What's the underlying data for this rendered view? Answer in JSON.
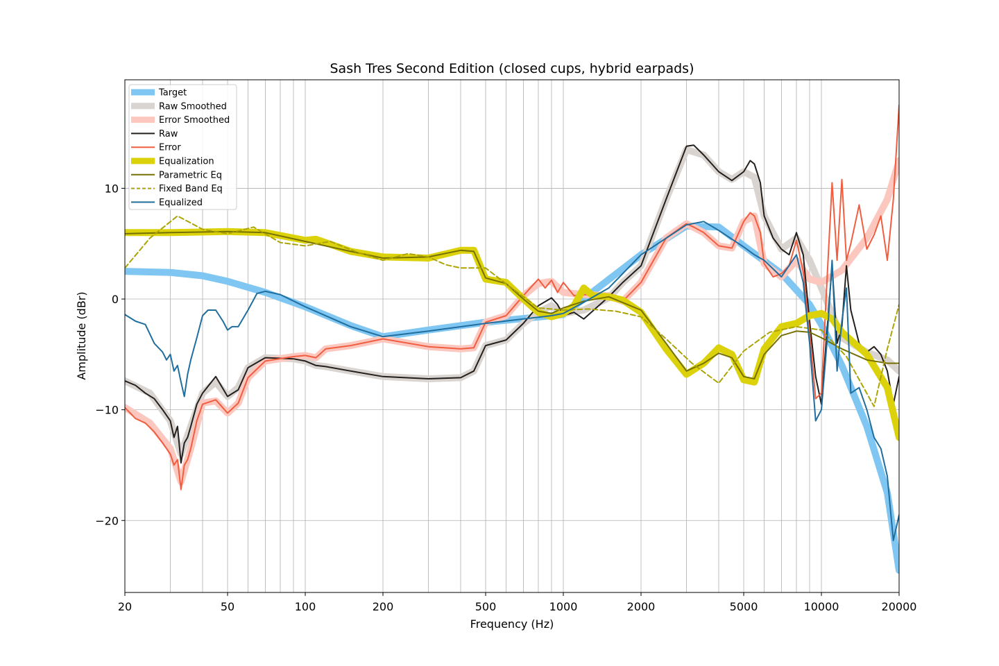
{
  "chart_data": {
    "type": "line",
    "title": "Sash Tres Second Edition (closed cups, hybrid earpads)",
    "xlabel": "Frequency (Hz)",
    "ylabel": "Amplitude (dBr)",
    "xscale": "log",
    "xlim": [
      20,
      20000
    ],
    "ylim": [
      -26.5,
      19.8
    ],
    "xticks": [
      20,
      50,
      100,
      200,
      500,
      1000,
      2000,
      5000,
      10000,
      20000
    ],
    "xtick_labels": [
      "20",
      "50",
      "100",
      "200",
      "500",
      "1000",
      "2000",
      "5000",
      "10000",
      "20000"
    ],
    "yticks": [
      -20,
      -10,
      0,
      10
    ],
    "ytick_labels": [
      "−20",
      "−10",
      "0",
      "10"
    ],
    "grid": true,
    "legend_position": "top-left",
    "series": [
      {
        "name": "Target",
        "key": "target",
        "color": "#7fc6f2",
        "style": "thick",
        "x": [
          20,
          30,
          40,
          50,
          70,
          100,
          150,
          200,
          300,
          500,
          1000,
          2000,
          3000,
          4000,
          5000,
          7000,
          9000,
          10000,
          12000,
          15000,
          18000,
          20000
        ],
        "y": [
          2.5,
          2.4,
          2.1,
          1.6,
          0.6,
          -0.7,
          -2.4,
          -3.4,
          -2.8,
          -2.1,
          -1.4,
          4.0,
          6.6,
          6.5,
          4.8,
          2.3,
          -0.5,
          -2.3,
          -6.0,
          -11.5,
          -17.5,
          -24.5
        ]
      },
      {
        "name": "Raw Smoothed",
        "key": "raw_smoothed",
        "color": "#d9d4d0",
        "style": "thick",
        "x": [
          20,
          25,
          30,
          33,
          36,
          40,
          45,
          50,
          55,
          60,
          70,
          90,
          100,
          110,
          120,
          150,
          200,
          300,
          400,
          450,
          500,
          600,
          700,
          800,
          900,
          1000,
          1200,
          1500,
          1700,
          2000,
          2500,
          3000,
          3500,
          4000,
          4500,
          5000,
          5500,
          6000,
          7000,
          8000,
          9000,
          10000,
          12000,
          15000,
          18000,
          20000
        ],
        "y": [
          -7.4,
          -8.5,
          -11,
          -14,
          -11.5,
          -8.5,
          -7.5,
          -8.8,
          -8,
          -6.2,
          -5.3,
          -5.4,
          -5.6,
          -6.0,
          -6.1,
          -6.5,
          -7.0,
          -7.2,
          -7.1,
          -6.5,
          -4.2,
          -3.7,
          -2.2,
          -1.2,
          -0.6,
          -1.3,
          -1.0,
          0.1,
          1.5,
          3.0,
          9.0,
          13.5,
          13.0,
          11.5,
          10.8,
          11.5,
          11.0,
          7.5,
          4.5,
          5.5,
          3.5,
          1.0,
          -3.5,
          -4.8,
          -5.5,
          -6.5
        ]
      },
      {
        "name": "Error Smoothed",
        "key": "error_smoothed",
        "color": "#fcc7bf",
        "style": "thick",
        "x": [
          20,
          25,
          30,
          33,
          36,
          40,
          45,
          50,
          55,
          60,
          70,
          90,
          100,
          110,
          120,
          150,
          200,
          300,
          400,
          450,
          500,
          600,
          700,
          800,
          900,
          1000,
          1200,
          1500,
          1700,
          2000,
          2500,
          3000,
          3500,
          4000,
          4500,
          5000,
          5500,
          6000,
          7000,
          8000,
          9000,
          10000,
          12000,
          15000,
          18000,
          20000
        ],
        "y": [
          -9.8,
          -11.2,
          -13.5,
          -16.5,
          -13.5,
          -9.4,
          -9.2,
          -10.3,
          -9.4,
          -7.1,
          -5.6,
          -5.2,
          -5.1,
          -5.3,
          -4.5,
          -4.2,
          -3.6,
          -4.3,
          -4.5,
          -4.4,
          -2.1,
          -1.5,
          0.3,
          1.4,
          1.6,
          0.6,
          0.4,
          0.3,
          -0.2,
          1.5,
          5.5,
          6.8,
          6.0,
          4.8,
          4.6,
          7.0,
          7.5,
          3.2,
          2.0,
          3.5,
          1.8,
          1.5,
          2.6,
          5.5,
          9.0,
          12.5
        ]
      },
      {
        "name": "Raw",
        "key": "raw",
        "color": "#231f1d",
        "style": "thin",
        "x": [
          20,
          22,
          24,
          26,
          28,
          30,
          31,
          32,
          33,
          34,
          35,
          36,
          38,
          40,
          45,
          50,
          55,
          60,
          70,
          90,
          100,
          110,
          120,
          150,
          200,
          300,
          400,
          450,
          500,
          600,
          700,
          800,
          900,
          950,
          1000,
          1100,
          1200,
          1500,
          1700,
          2000,
          2500,
          3000,
          3200,
          3500,
          4000,
          4500,
          5000,
          5300,
          5500,
          5800,
          6000,
          6500,
          7000,
          7500,
          8000,
          8500,
          9000,
          9500,
          10000,
          10500,
          11000,
          11500,
          12000,
          12500,
          13000,
          14000,
          15000,
          16000,
          17000,
          18000,
          19000,
          20000
        ],
        "y": [
          -7.4,
          -7.8,
          -8.5,
          -9.0,
          -10.0,
          -11.0,
          -12.5,
          -11.5,
          -14.8,
          -13.0,
          -12.5,
          -11.5,
          -9.5,
          -8.5,
          -7.0,
          -8.8,
          -8.2,
          -6.2,
          -5.3,
          -5.4,
          -5.6,
          -6.0,
          -6.1,
          -6.5,
          -7.0,
          -7.2,
          -7.1,
          -6.5,
          -4.2,
          -3.7,
          -2.2,
          -0.6,
          0.1,
          -0.5,
          -1.5,
          -1.2,
          -1.8,
          0.2,
          1.5,
          3.0,
          9.0,
          13.8,
          13.9,
          13.0,
          11.5,
          10.7,
          11.5,
          12.5,
          12.2,
          10.5,
          7.5,
          5.5,
          4.5,
          4.0,
          6.0,
          4.0,
          -2.0,
          -7.0,
          -9.5,
          -3.0,
          3.0,
          -4.0,
          -2.5,
          3.0,
          -1.0,
          -4.0,
          -4.8,
          -4.3,
          -5.0,
          -6.5,
          -9.5,
          -7.0
        ]
      },
      {
        "name": "Error",
        "key": "error",
        "color": "#f05d3f",
        "style": "thin",
        "x": [
          20,
          22,
          24,
          26,
          28,
          30,
          31,
          32,
          33,
          34,
          35,
          36,
          38,
          40,
          45,
          50,
          55,
          60,
          70,
          90,
          100,
          110,
          120,
          150,
          200,
          300,
          400,
          450,
          500,
          600,
          700,
          800,
          850,
          900,
          950,
          1000,
          1100,
          1200,
          1500,
          1700,
          2000,
          2500,
          3000,
          3200,
          3500,
          4000,
          4500,
          5000,
          5300,
          5500,
          5800,
          6000,
          6500,
          7000,
          7500,
          8000,
          8500,
          9000,
          9500,
          10000,
          10500,
          11000,
          11500,
          12000,
          12500,
          13000,
          14000,
          15000,
          16000,
          17000,
          18000,
          19000,
          20000
        ],
        "y": [
          -9.8,
          -10.8,
          -11.2,
          -12.0,
          -13.0,
          -14.0,
          -15.0,
          -14.5,
          -17.2,
          -15.0,
          -14.5,
          -13.5,
          -11.0,
          -9.5,
          -9.1,
          -10.3,
          -9.4,
          -7.1,
          -5.6,
          -5.2,
          -5.1,
          -5.3,
          -4.5,
          -4.2,
          -3.6,
          -4.3,
          -4.5,
          -4.4,
          -2.1,
          -1.5,
          0.3,
          1.8,
          1.0,
          1.7,
          0.6,
          1.5,
          0.3,
          0.4,
          0.3,
          -0.2,
          1.5,
          5.5,
          6.8,
          6.5,
          6.0,
          4.8,
          4.6,
          7.0,
          7.8,
          7.5,
          6.0,
          3.2,
          2.0,
          2.3,
          3.0,
          5.3,
          2.5,
          -3.0,
          -9.0,
          -8.5,
          1.5,
          10.5,
          3.5,
          10.8,
          3.5,
          5.0,
          8.5,
          4.5,
          5.8,
          7.5,
          3.5,
          9.0,
          17.5
        ]
      },
      {
        "name": "Equalization",
        "key": "equalization",
        "color": "#dcd20c",
        "style": "thick",
        "x": [
          20,
          30,
          50,
          70,
          100,
          110,
          150,
          200,
          300,
          400,
          450,
          500,
          600,
          700,
          800,
          900,
          1000,
          1100,
          1200,
          1300,
          1500,
          1700,
          2000,
          2500,
          3000,
          3500,
          4000,
          4500,
          5000,
          5500,
          6000,
          7000,
          8000,
          9000,
          10000,
          11000,
          12000,
          15000,
          18000,
          20000
        ],
        "y": [
          6.0,
          6.0,
          6.1,
          6.0,
          5.3,
          5.4,
          4.3,
          3.8,
          3.7,
          4.4,
          4.4,
          1.8,
          1.5,
          0.0,
          -1.2,
          -1.6,
          -1.3,
          -0.6,
          1.0,
          0.3,
          0.2,
          -0.1,
          -1.2,
          -4.5,
          -6.8,
          -5.8,
          -4.4,
          -5.0,
          -7.3,
          -7.5,
          -4.5,
          -2.5,
          -2.2,
          -1.5,
          -1.3,
          -1.8,
          -3.0,
          -5.0,
          -8.0,
          -12.5
        ]
      },
      {
        "name": "Parametric Eq",
        "key": "parametric_eq",
        "color": "#757001",
        "style": "thin",
        "x": [
          20,
          30,
          50,
          70,
          100,
          150,
          200,
          300,
          400,
          450,
          500,
          600,
          700,
          800,
          900,
          1000,
          1200,
          1500,
          2000,
          2500,
          3000,
          3500,
          4000,
          4500,
          5000,
          5500,
          6000,
          7000,
          8000,
          9000,
          10000,
          12000,
          15000,
          18000,
          20000
        ],
        "y": [
          5.9,
          6.0,
          6.1,
          6.0,
          5.2,
          4.3,
          3.7,
          3.8,
          4.4,
          4.3,
          1.9,
          1.4,
          0.0,
          -1.1,
          -1.3,
          -0.8,
          -0.2,
          0.2,
          -1.0,
          -4.0,
          -6.5,
          -5.8,
          -4.9,
          -5.3,
          -7.0,
          -7.2,
          -5.0,
          -3.3,
          -2.9,
          -3.0,
          -3.5,
          -4.5,
          -5.5,
          -5.8,
          -5.8
        ]
      },
      {
        "name": "Fixed Band Eq",
        "key": "fixed_band_eq",
        "color": "#aca405",
        "style": "dashed",
        "x": [
          20,
          25,
          32,
          40,
          50,
          63,
          80,
          100,
          125,
          160,
          200,
          250,
          300,
          350,
          400,
          500,
          630,
          800,
          1000,
          1250,
          1600,
          2000,
          2500,
          3150,
          4000,
          5000,
          6300,
          8000,
          10000,
          12500,
          16000,
          18000,
          20000
        ],
        "y": [
          2.8,
          5.5,
          7.5,
          6.3,
          5.9,
          6.5,
          5.1,
          4.8,
          5.2,
          4.2,
          3.5,
          4.1,
          3.8,
          3.1,
          2.8,
          2.8,
          1.0,
          -0.8,
          -1.0,
          -0.9,
          -1.1,
          -1.6,
          -3.6,
          -5.8,
          -7.6,
          -4.7,
          -3.0,
          -2.5,
          -2.8,
          -5.2,
          -9.7,
          -4.5,
          -0.5
        ]
      },
      {
        "name": "Equalized",
        "key": "equalized",
        "color": "#1f6e9e",
        "style": "thin",
        "x": [
          20,
          22,
          24,
          26,
          28,
          29,
          30,
          31,
          32,
          33,
          34,
          35,
          36,
          38,
          40,
          42,
          45,
          48,
          50,
          52,
          55,
          60,
          65,
          70,
          80,
          100,
          150,
          200,
          300,
          500,
          700,
          900,
          1000,
          1200,
          1500,
          2000,
          3000,
          3500,
          4000,
          5000,
          5500,
          6000,
          7000,
          8000,
          8500,
          9000,
          9500,
          10000,
          10500,
          11000,
          11500,
          12000,
          12500,
          13000,
          14000,
          15000,
          16000,
          17000,
          18000,
          19000,
          20000
        ],
        "y": [
          -1.4,
          -2.0,
          -2.3,
          -4.0,
          -4.8,
          -5.5,
          -5.0,
          -6.5,
          -6.0,
          -7.5,
          -8.8,
          -6.8,
          -5.5,
          -3.5,
          -1.5,
          -1.0,
          -1.0,
          -2.0,
          -2.8,
          -2.5,
          -2.5,
          -1.0,
          0.5,
          0.7,
          0.4,
          -0.7,
          -2.5,
          -3.4,
          -2.9,
          -2.2,
          -1.8,
          -1.5,
          -1.3,
          -0.3,
          1.0,
          4.0,
          6.7,
          7.0,
          6.2,
          4.7,
          4.0,
          3.5,
          2.0,
          4.0,
          1.5,
          -4.0,
          -11.0,
          -10.0,
          -4.0,
          3.5,
          -6.5,
          -2.0,
          1.0,
          -8.5,
          -8.0,
          -10.0,
          -12.5,
          -13.5,
          -16.0,
          -21.8,
          -19.5
        ]
      }
    ]
  }
}
